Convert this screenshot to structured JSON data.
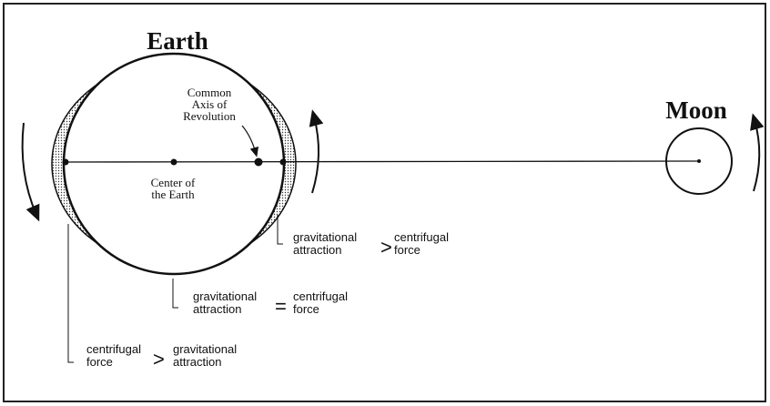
{
  "labels": {
    "earth": "Earth",
    "moon": "Moon",
    "axis": [
      "Common",
      "Axis of",
      "Revolution"
    ],
    "center": [
      "Center of",
      "the Earth"
    ]
  },
  "annotations": [
    {
      "left": [
        "gravitational",
        "attraction"
      ],
      "relation": ">",
      "right": [
        "centrifugal",
        "force"
      ]
    },
    {
      "left": [
        "gravitational",
        "attraction"
      ],
      "relation": "=",
      "right": [
        "centrifugal",
        "force"
      ]
    },
    {
      "left": [
        "centrifugal",
        "force"
      ],
      "relation": ">",
      "right": [
        "gravitational",
        "attraction"
      ]
    }
  ]
}
